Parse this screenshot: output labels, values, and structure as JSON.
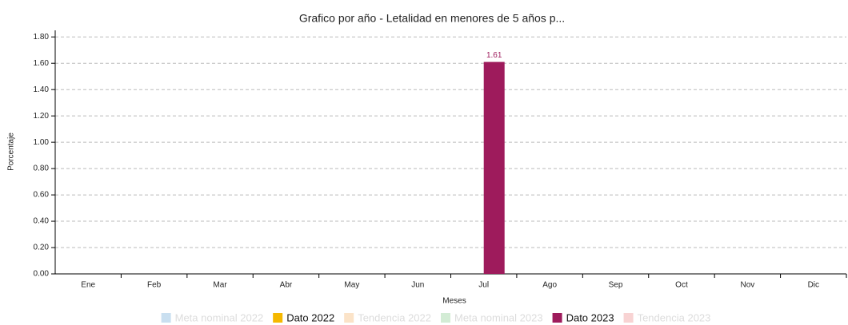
{
  "chart_data": {
    "type": "bar",
    "title": "Grafico por año - Letalidad en menores de 5 años p...",
    "x_label": "Meses",
    "y_label": "Porcentaje",
    "categories": [
      "Ene",
      "Feb",
      "Mar",
      "Abr",
      "May",
      "Jun",
      "Jul",
      "Ago",
      "Sep",
      "Oct",
      "Nov",
      "Dic"
    ],
    "series": [
      {
        "name": "Meta nominal 2022",
        "color": "#c9dff0",
        "hidden": true,
        "values": [
          null,
          null,
          null,
          null,
          null,
          null,
          null,
          null,
          null,
          null,
          null,
          null
        ]
      },
      {
        "name": "Dato 2022",
        "color": "#f5b800",
        "hidden": false,
        "values": [
          null,
          null,
          null,
          null,
          null,
          null,
          null,
          null,
          null,
          null,
          null,
          null
        ]
      },
      {
        "name": "Tendencia 2022",
        "color": "#fbe3c8",
        "hidden": true,
        "values": [
          null,
          null,
          null,
          null,
          null,
          null,
          null,
          null,
          null,
          null,
          null,
          null
        ]
      },
      {
        "name": "Meta nominal 2023",
        "color": "#d3ecd5",
        "hidden": true,
        "values": [
          null,
          null,
          null,
          null,
          null,
          null,
          null,
          null,
          null,
          null,
          null,
          null
        ]
      },
      {
        "name": "Dato 2023",
        "color": "#9e1b5c",
        "hidden": false,
        "values": [
          null,
          null,
          null,
          null,
          null,
          null,
          1.61,
          null,
          null,
          null,
          null,
          null
        ]
      },
      {
        "name": "Tendencia 2023",
        "color": "#f8d3d3",
        "hidden": true,
        "values": [
          null,
          null,
          null,
          null,
          null,
          null,
          null,
          null,
          null,
          null,
          null,
          null
        ]
      }
    ],
    "ylim": [
      0,
      1.85
    ],
    "yticks": [
      {
        "value": 0,
        "label": "0.00"
      },
      {
        "value": 0.2,
        "label": "0.20"
      },
      {
        "value": 0.4,
        "label": "0.40"
      },
      {
        "value": 0.6,
        "label": "0.60"
      },
      {
        "value": 0.8,
        "label": "0.80"
      },
      {
        "value": 1,
        "label": "1.00"
      },
      {
        "value": 1.2,
        "label": "1.20"
      },
      {
        "value": 1.4,
        "label": "1.40"
      },
      {
        "value": 1.6,
        "label": "1.60"
      },
      {
        "value": 1.8,
        "label": "1.80"
      }
    ],
    "grid": true,
    "legend": "bottom"
  }
}
